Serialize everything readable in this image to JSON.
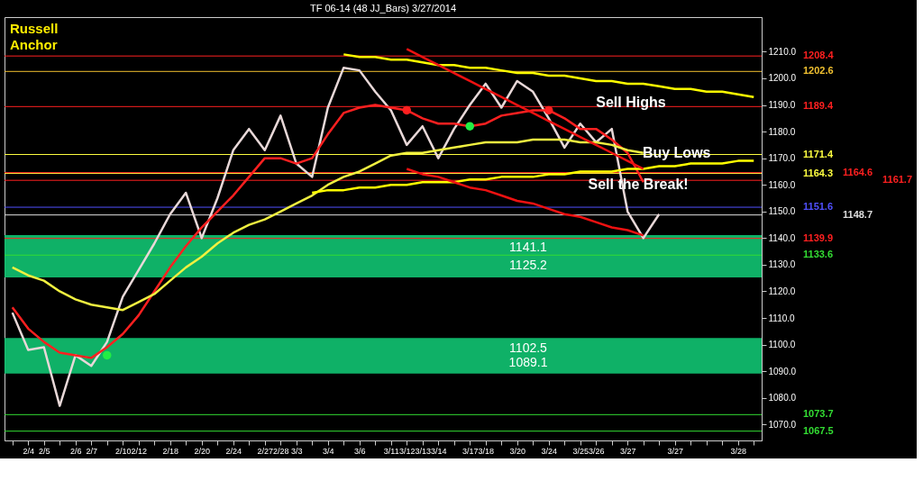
{
  "chart_data": {
    "type": "line",
    "title": "TF 06-14 (48 JJ_Bars)  3/27/2014",
    "categories": [
      null,
      "2/4",
      "2/5",
      null,
      "2/6",
      "2/7",
      null,
      "2/10",
      "2/12",
      null,
      "2/18",
      null,
      "2/20",
      null,
      "2/24",
      null,
      "2/27",
      "2/28",
      "3/3",
      null,
      "3/4",
      null,
      "3/6",
      null,
      "3/11",
      "3/12",
      "3/13",
      "3/14",
      null,
      "3/17",
      "3/18",
      null,
      "3/20",
      null,
      "3/24",
      null,
      "3/25",
      "3/26",
      null,
      "3/27",
      null,
      null,
      "3/27",
      null,
      null,
      null,
      "3/28",
      null
    ],
    "ylim": [
      1064,
      1223
    ],
    "yticks": [
      {
        "value": 1070,
        "label": "1070.0"
      },
      {
        "value": 1080,
        "label": "1080.0"
      },
      {
        "value": 1090,
        "label": "1090.0"
      },
      {
        "value": 1100,
        "label": "1100.0"
      },
      {
        "value": 1110,
        "label": "1110.0"
      },
      {
        "value": 1120,
        "label": "1120.0"
      },
      {
        "value": 1130,
        "label": "1130.0"
      },
      {
        "value": 1140,
        "label": "1140.0"
      },
      {
        "value": 1150,
        "label": "1150.0"
      },
      {
        "value": 1160,
        "label": "1160.0"
      },
      {
        "value": 1170,
        "label": "1170.0"
      },
      {
        "value": 1180,
        "label": "1180.0"
      },
      {
        "value": 1190,
        "label": "1190.0"
      },
      {
        "value": 1200,
        "label": "1200.0"
      },
      {
        "value": 1210,
        "label": "1210.0"
      }
    ],
    "grid": false,
    "series": [
      {
        "color": "#e8d8d8",
        "values": [
          1112,
          1098,
          1099,
          1077,
          1096,
          1092,
          1101,
          1118,
          1128,
          1138,
          1149,
          1157,
          1140,
          1155,
          1173,
          1181,
          1173,
          1186,
          1168,
          1163,
          1189,
          1204,
          1203,
          1195,
          1188,
          1175,
          1182,
          1170,
          1181,
          1190,
          1198,
          1189,
          1199,
          1195,
          1185,
          1174,
          1183,
          1176,
          1181,
          1150,
          1140,
          1149,
          null,
          null,
          null,
          null,
          null,
          null
        ]
      },
      {
        "color": "#ff2020",
        "values": [
          1114,
          1106,
          1101,
          1097,
          1096,
          1095,
          1099,
          1104,
          1111,
          1120,
          1129,
          1137,
          1144,
          1150,
          1156,
          1163,
          1170,
          1170,
          1168,
          1170,
          1179,
          1187,
          1189,
          1190,
          1189,
          1188,
          1185,
          1183,
          1183,
          1182,
          1183,
          1186,
          1187,
          1188,
          1188,
          1185,
          1181,
          1181,
          1177,
          1172,
          1161,
          null,
          null,
          null,
          null,
          null,
          null,
          null
        ]
      },
      {
        "color": "#f0f040",
        "values": [
          1129,
          1126,
          1124,
          1120,
          1117,
          1115,
          1114,
          1113,
          1116,
          1119,
          1124,
          1129,
          1133,
          1138,
          1142,
          1145,
          1147,
          1150,
          1153,
          1156,
          1160,
          1163,
          1165,
          1168,
          1171,
          1172,
          1172,
          1173,
          1174,
          1175,
          1176,
          1176,
          1176,
          1177,
          1177,
          1177,
          1176,
          1176,
          1175,
          1173,
          1172,
          null,
          null,
          null,
          null,
          null,
          null,
          null
        ]
      },
      {
        "color": "#ffff00",
        "values": [
          null,
          null,
          null,
          null,
          null,
          null,
          null,
          null,
          null,
          null,
          null,
          null,
          null,
          null,
          null,
          null,
          null,
          null,
          null,
          null,
          null,
          1209,
          1208,
          1208,
          1207,
          1207,
          1206,
          1205,
          1205,
          1204,
          1204,
          1203,
          1202,
          1202,
          1201,
          1201,
          1200,
          1199,
          1199,
          1198,
          1198,
          1197,
          1196,
          1196,
          1195,
          1195,
          1194,
          1193
        ]
      },
      {
        "color": "#ffff00",
        "values": [
          null,
          null,
          null,
          null,
          null,
          null,
          null,
          null,
          null,
          null,
          null,
          null,
          null,
          null,
          null,
          null,
          null,
          null,
          null,
          1157,
          1158,
          1158,
          1159,
          1159,
          1160,
          1160,
          1161,
          1161,
          1161,
          1162,
          1162,
          1163,
          1163,
          1163,
          1164,
          1164,
          1165,
          1165,
          1165,
          1166,
          1166,
          1167,
          1167,
          1168,
          1168,
          1168,
          1169,
          1169
        ]
      },
      {
        "color": "#ee1111",
        "values": [
          null,
          null,
          null,
          null,
          null,
          null,
          null,
          null,
          null,
          null,
          null,
          null,
          null,
          null,
          null,
          null,
          null,
          null,
          null,
          null,
          null,
          null,
          null,
          null,
          null,
          1211,
          1208,
          1205,
          1202,
          1199,
          1196,
          1193,
          1190,
          1187,
          1184,
          1181,
          1178,
          1175,
          1172,
          1169,
          1166,
          null,
          null,
          null,
          null,
          null,
          null,
          null
        ]
      },
      {
        "color": "#ee1111",
        "values": [
          null,
          null,
          null,
          null,
          null,
          null,
          null,
          null,
          null,
          null,
          null,
          null,
          null,
          null,
          null,
          null,
          null,
          null,
          null,
          null,
          null,
          null,
          null,
          null,
          null,
          1166,
          1164,
          1163,
          1161,
          1159,
          1158,
          1156,
          1154,
          1153,
          1151,
          1149,
          1148,
          1146,
          1144,
          1143,
          1141,
          null,
          null,
          null,
          null,
          null,
          null,
          null
        ]
      },
      {
        "type": "scatter",
        "marker": "circle",
        "values": [
          null,
          null,
          null,
          null,
          null,
          null,
          1096,
          null,
          null,
          null,
          null,
          null,
          null,
          null,
          null,
          null,
          null,
          null,
          null,
          null,
          null,
          null,
          null,
          null,
          null,
          1188,
          null,
          null,
          null,
          1182,
          null,
          null,
          null,
          null,
          1188,
          null,
          null,
          null,
          null,
          null,
          null,
          null,
          null,
          null,
          null,
          null,
          null,
          null
        ],
        "colors": [
          null,
          null,
          null,
          null,
          null,
          null,
          "#22ee44",
          null,
          null,
          null,
          null,
          null,
          null,
          null,
          null,
          null,
          null,
          null,
          null,
          null,
          null,
          null,
          null,
          null,
          null,
          "#ff2020",
          null,
          null,
          null,
          "#22ee44",
          null,
          null,
          null,
          null,
          "#ff2020",
          null,
          null,
          null,
          null,
          null,
          null,
          null,
          null,
          null,
          null,
          null,
          null,
          null
        ]
      }
    ],
    "bands": [
      {
        "axis": "y",
        "from": 1125.2,
        "to": 1141.1,
        "color": "#10c070"
      },
      {
        "axis": "y",
        "from": 1089.1,
        "to": 1102.5,
        "color": "#10c070"
      }
    ],
    "ref_lines": [
      {
        "axis": "y",
        "value": 1208.4,
        "label": "1208.4",
        "color": "#ff2020"
      },
      {
        "axis": "y",
        "value": 1202.6,
        "label": "1202.6",
        "color": "#f0c030"
      },
      {
        "axis": "y",
        "value": 1189.4,
        "label": "1189.4",
        "color": "#ff2020"
      },
      {
        "axis": "y",
        "value": 1171.4,
        "label": "1171.4",
        "color": "#ffff40"
      },
      {
        "axis": "y",
        "value": 1164.3,
        "label": "1164.3",
        "color": "#ffff40"
      },
      {
        "axis": "y",
        "value": 1164.6,
        "label": "1164.6",
        "color": "#ff2020"
      },
      {
        "axis": "y",
        "value": 1161.7,
        "label": "1161.7",
        "color": "#ff2020"
      },
      {
        "axis": "y",
        "value": 1151.6,
        "label": "1151.6",
        "color": "#5050ff"
      },
      {
        "axis": "y",
        "value": 1148.7,
        "label": "1148.7",
        "color": "#dddddd"
      },
      {
        "axis": "y",
        "value": 1139.9,
        "label": "1139.9",
        "color": "#ff2020"
      },
      {
        "axis": "y",
        "value": 1133.6,
        "label": "1133.6",
        "color": "#33dd33"
      },
      {
        "axis": "y",
        "value": 1073.7,
        "label": "1073.7",
        "color": "#33dd33"
      },
      {
        "axis": "y",
        "value": 1067.5,
        "label": "1067.5",
        "color": "#33dd33"
      }
    ],
    "annotations": [
      "Russell Anchor",
      {
        "text": "Sell Highs",
        "x": "3/26",
        "y": 1191
      },
      "Buy Lows",
      "Sell the Break!",
      "1141.1",
      "1125.2",
      "1102.5",
      "1089.1"
    ]
  }
}
